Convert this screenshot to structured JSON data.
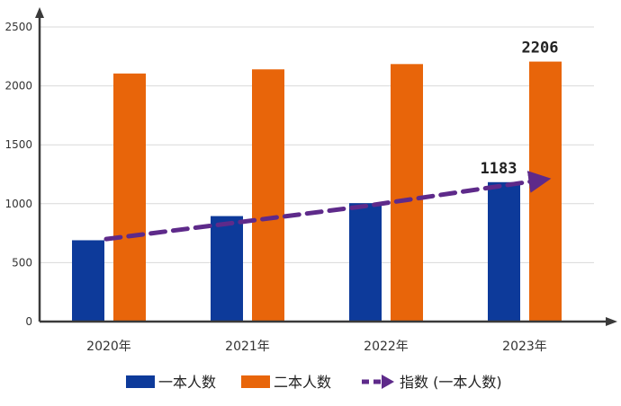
{
  "chart_data": {
    "type": "bar",
    "categories": [
      "2020年",
      "2021年",
      "2022年",
      "2023年"
    ],
    "series": [
      {
        "name": "一本人数",
        "type": "bar",
        "color": "#0d3a9a",
        "values": [
          690,
          895,
          1005,
          1183
        ]
      },
      {
        "name": "二本人数",
        "type": "bar",
        "color": "#e8650a",
        "values": [
          2105,
          2140,
          2185,
          2206
        ]
      },
      {
        "name": "指数 (一本人数)",
        "type": "line-arrow",
        "style": "dashed",
        "color": "#5e2a8a",
        "values": [
          700,
          830,
          980,
          1200
        ]
      }
    ],
    "data_labels": [
      {
        "series": "一本人数",
        "category": "2023年",
        "text": "1183"
      },
      {
        "series": "二本人数",
        "category": "2023年",
        "text": "2206"
      }
    ],
    "y_ticks": [
      0,
      500,
      1000,
      1500,
      2000,
      2500
    ],
    "ylim": [
      0,
      2500
    ],
    "grid": true,
    "legend_position": "bottom",
    "title": "",
    "xlabel": "",
    "ylabel": ""
  }
}
